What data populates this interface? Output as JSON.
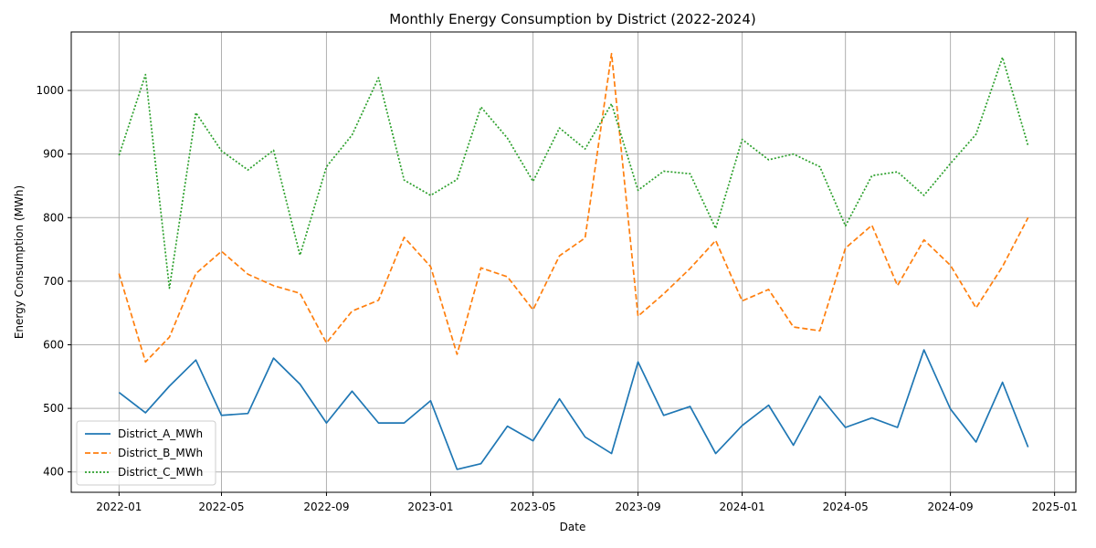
{
  "chart_data": {
    "type": "line",
    "title": "Monthly Energy Consumption by District (2022-2024)",
    "xlabel": "Date",
    "ylabel": "Energy Consumption (MWh)",
    "x": [
      "2022-01",
      "2022-02",
      "2022-03",
      "2022-04",
      "2022-05",
      "2022-06",
      "2022-07",
      "2022-08",
      "2022-09",
      "2022-10",
      "2022-11",
      "2022-12",
      "2023-01",
      "2023-02",
      "2023-03",
      "2023-04",
      "2023-05",
      "2023-06",
      "2023-07",
      "2023-08",
      "2023-09",
      "2023-10",
      "2023-11",
      "2023-12",
      "2024-01",
      "2024-02",
      "2024-03",
      "2024-04",
      "2024-05",
      "2024-06",
      "2024-07",
      "2024-08",
      "2024-09",
      "2024-10",
      "2024-11",
      "2024-12"
    ],
    "xlim": [
      "2021-11-06",
      "2025-01-26"
    ],
    "xticks": [
      "2022-01",
      "2022-05",
      "2022-09",
      "2023-01",
      "2023-05",
      "2023-09",
      "2024-01",
      "2024-05",
      "2024-09",
      "2025-01"
    ],
    "ylim": [
      368,
      1092
    ],
    "yticks": [
      400,
      500,
      600,
      700,
      800,
      900,
      1000
    ],
    "grid": true,
    "legend_position": "lower-left",
    "series": [
      {
        "name": "District_A_MWh",
        "color": "#1f77b4",
        "style": "solid",
        "values": [
          525,
          493,
          535,
          576,
          489,
          492,
          579,
          538,
          477,
          527,
          477,
          477,
          512,
          404,
          413,
          472,
          449,
          515,
          455,
          429,
          573,
          489,
          503,
          429,
          473,
          505,
          442,
          519,
          470,
          485,
          470,
          592,
          499,
          447,
          541,
          439
        ]
      },
      {
        "name": "District_B_MWh",
        "color": "#ff7f0e",
        "style": "dashed",
        "values": [
          712,
          573,
          612,
          712,
          747,
          711,
          693,
          681,
          603,
          653,
          670,
          769,
          723,
          585,
          721,
          707,
          655,
          740,
          768,
          1058,
          645,
          680,
          720,
          764,
          669,
          687,
          628,
          622,
          752,
          788,
          693,
          765,
          725,
          658,
          723,
          800
        ]
      },
      {
        "name": "District_C_MWh",
        "color": "#2ca02c",
        "style": "dotted",
        "values": [
          898,
          1025,
          689,
          965,
          905,
          875,
          906,
          741,
          880,
          930,
          1020,
          859,
          835,
          860,
          974,
          925,
          857,
          941,
          908,
          979,
          843,
          873,
          869,
          783,
          923,
          891,
          900,
          880,
          787,
          866,
          872,
          835,
          885,
          931,
          1052,
          913
        ]
      }
    ]
  }
}
